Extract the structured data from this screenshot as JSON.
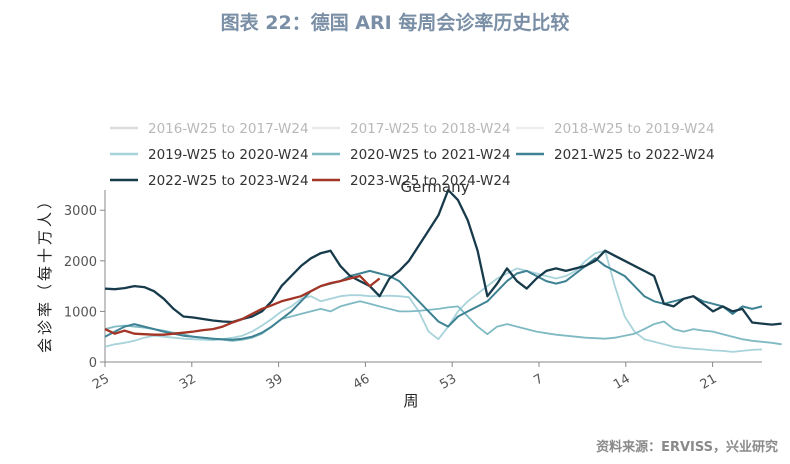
{
  "header": {
    "figure_title": "图表 22：德国 ARI 每周会诊率历史比较",
    "source": "资料来源：ERVISS，兴业研究"
  },
  "chart_data": {
    "type": "line",
    "title": "Germany",
    "xlabel": "周",
    "ylabel": "会诊率（每十万人）",
    "x_ticks": [
      25,
      32,
      39,
      46,
      53,
      7,
      14,
      21
    ],
    "y_ticks": [
      0,
      1000,
      2000,
      3000
    ],
    "ylim": [
      0,
      3400
    ],
    "grid": false,
    "legend_position": "top",
    "series": [
      {
        "name": "2016-W25 to 2017-W24",
        "color": "#dcdcdc",
        "width": 1.5,
        "values": []
      },
      {
        "name": "2017-W25 to 2018-W24",
        "color": "#e9e9e9",
        "width": 1.5,
        "values": []
      },
      {
        "name": "2018-W25 to 2019-W24",
        "color": "#eeeeee",
        "width": 1.5,
        "values": []
      },
      {
        "name": "2019-W25 to 2020-W24",
        "color": "#a8d3da",
        "width": 1.8,
        "values": [
          300,
          350,
          380,
          420,
          480,
          520,
          500,
          480,
          460,
          450,
          440,
          430,
          450,
          480,
          520,
          600,
          720,
          850,
          1000,
          1100,
          1250,
          1300,
          1200,
          1250,
          1300,
          1320,
          1320,
          1300,
          1300,
          1310,
          1300,
          1280,
          1000,
          600,
          450,
          700,
          1000,
          1200,
          1350,
          1500,
          1650,
          1750,
          1850,
          1800,
          1750,
          1700,
          1650,
          1700,
          1800,
          2000,
          2150,
          2200,
          1500,
          900,
          600,
          450,
          400,
          350,
          300,
          280,
          260,
          250,
          230,
          220,
          200,
          220,
          240,
          250
        ]
      },
      {
        "name": "2020-W25 to 2021-W24",
        "color": "#7fbac3",
        "width": 1.8,
        "values": [
          650,
          700,
          720,
          700,
          680,
          650,
          620,
          580,
          550,
          500,
          480,
          460,
          440,
          420,
          440,
          480,
          560,
          700,
          850,
          900,
          950,
          1000,
          1050,
          1000,
          1100,
          1150,
          1200,
          1150,
          1100,
          1050,
          1000,
          1000,
          1010,
          1030,
          1050,
          1080,
          1100,
          900,
          700,
          550,
          700,
          750,
          700,
          650,
          600,
          570,
          540,
          520,
          500,
          480,
          470,
          460,
          480,
          520,
          560,
          650,
          750,
          800,
          650,
          600,
          650,
          620,
          600,
          550,
          500,
          450,
          420,
          400,
          380,
          350
        ]
      },
      {
        "name": "2021-W25 to 2022-W24",
        "color": "#3e8293",
        "width": 2.0,
        "values": [
          500,
          600,
          700,
          750,
          700,
          650,
          600,
          560,
          520,
          500,
          480,
          460,
          450,
          440,
          460,
          500,
          580,
          700,
          850,
          1000,
          1200,
          1400,
          1500,
          1550,
          1600,
          1700,
          1750,
          1800,
          1750,
          1700,
          1600,
          1400,
          1200,
          1000,
          800,
          700,
          900,
          1000,
          1100,
          1200,
          1400,
          1600,
          1750,
          1800,
          1700,
          1600,
          1550,
          1600,
          1750,
          1900,
          2050,
          1900,
          1800,
          1700,
          1500,
          1300,
          1200,
          1150,
          1200,
          1250,
          1300,
          1200,
          1150,
          1100,
          950,
          1100,
          1050,
          1100
        ]
      },
      {
        "name": "2022-W25 to 2023-W24",
        "color": "#173b4b",
        "width": 2.3,
        "values": [
          1450,
          1440,
          1460,
          1500,
          1480,
          1400,
          1250,
          1050,
          900,
          880,
          850,
          820,
          800,
          790,
          850,
          900,
          1000,
          1200,
          1500,
          1700,
          1900,
          2050,
          2150,
          2200,
          1900,
          1700,
          1600,
          1500,
          1300,
          1650,
          1800,
          2000,
          2300,
          2600,
          2900,
          3400,
          3200,
          2800,
          2200,
          1300,
          1550,
          1850,
          1600,
          1450,
          1650,
          1800,
          1850,
          1800,
          1850,
          1900,
          2000,
          2200,
          2100,
          2000,
          1900,
          1800,
          1700,
          1150,
          1100,
          1250,
          1300,
          1150,
          1000,
          1100,
          1000,
          1050,
          780,
          760,
          740,
          760
        ]
      },
      {
        "name": "2023-W25 to 2024-W24",
        "color": "#a33527",
        "width": 2.3,
        "values": [
          650,
          560,
          620,
          560,
          550,
          540,
          540,
          560,
          580,
          600,
          630,
          650,
          700,
          780,
          850,
          950,
          1050,
          1120,
          1200,
          1250,
          1300,
          1400,
          1500,
          1560,
          1600,
          1650,
          1700,
          1500,
          1650
        ]
      }
    ]
  }
}
